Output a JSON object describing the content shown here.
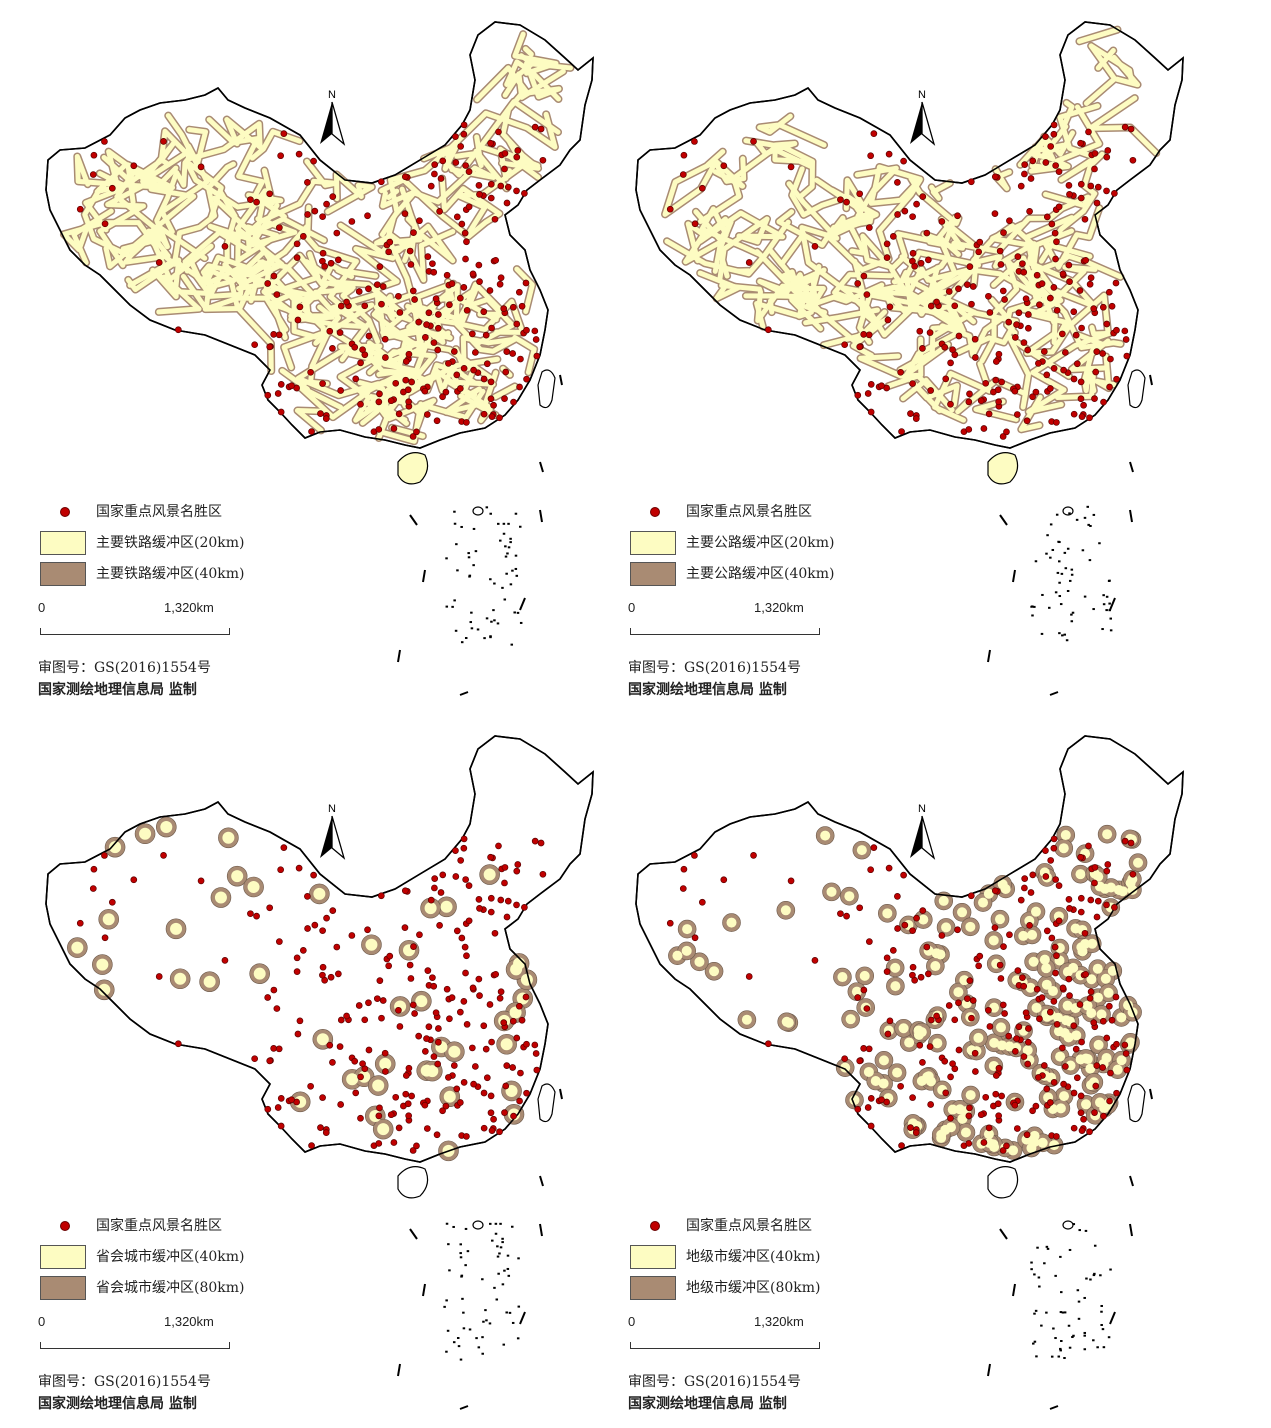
{
  "colors": {
    "scenic": "#c00000",
    "buffer_inner": "#fdfcc2",
    "buffer_outer": "#a98b73",
    "border": "#000000"
  },
  "panels": [
    {
      "id": "railway",
      "legend": {
        "scenic": "国家重点风景名胜区",
        "inner": "主要铁路缓冲区(20km)",
        "outer": "主要铁路缓冲区(40km)"
      },
      "scale": {
        "start": "0",
        "end": "1,320km"
      },
      "credit": {
        "line1": "审图号：GS(2016)1554号",
        "line2": "国家测绘地理信息局 监制"
      }
    },
    {
      "id": "highway",
      "legend": {
        "scenic": "国家重点风景名胜区",
        "inner": "主要公路缓冲区(20km)",
        "outer": "主要公路缓冲区(40km)"
      },
      "scale": {
        "start": "0",
        "end": "1,320km"
      },
      "credit": {
        "line1": "审图号：GS(2016)1554号",
        "line2": "国家测绘地理信息局 监制"
      }
    },
    {
      "id": "provincial-capital",
      "legend": {
        "scenic": "国家重点风景名胜区",
        "inner": "省会城市缓冲区(40km)",
        "outer": "省会城市缓冲区(80km)"
      },
      "scale": {
        "start": "0",
        "end": "1,320km"
      },
      "credit": {
        "line1": "审图号：GS(2016)1554号",
        "line2": "国家测绘地理信息局 监制"
      }
    },
    {
      "id": "prefecture-city",
      "legend": {
        "scenic": "国家重点风景名胜区",
        "inner": "地级市缓冲区(40km)",
        "outer": "地级市缓冲区(80km)"
      },
      "scale": {
        "start": "0",
        "end": "1,320km"
      },
      "credit": {
        "line1": "审图号：GS(2016)1554号",
        "line2": "国家测绘地理信息局 监制"
      }
    }
  ],
  "north_arrow": "N"
}
